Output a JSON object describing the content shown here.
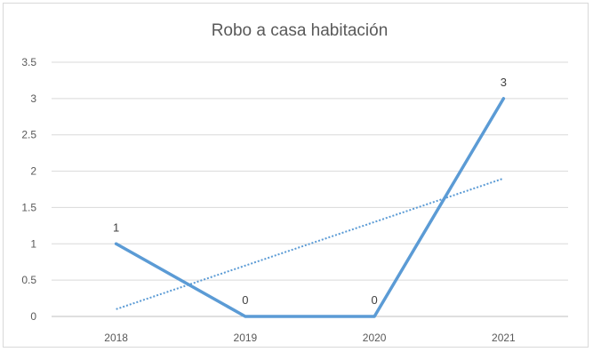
{
  "chart_data": {
    "type": "line",
    "title": "Robo a casa habitación",
    "xlabel": "",
    "ylabel": "",
    "categories": [
      "2018",
      "2019",
      "2020",
      "2021"
    ],
    "series": [
      {
        "values": [
          1,
          0,
          0,
          3
        ],
        "data_labels": [
          "1",
          "0",
          "0",
          "3"
        ],
        "color": "#5b9bd5"
      }
    ],
    "trendline": {
      "type": "linear",
      "style": "dotted",
      "color": "#5b9bd5"
    },
    "ylim": [
      0,
      3.5
    ],
    "y_ticks": [
      0,
      0.5,
      1,
      1.5,
      2,
      2.5,
      3,
      3.5
    ],
    "y_tick_labels": [
      "0",
      "0.5",
      "1",
      "1.5",
      "2",
      "2.5",
      "3",
      "3.5"
    ],
    "grid": true,
    "legend": "none"
  }
}
